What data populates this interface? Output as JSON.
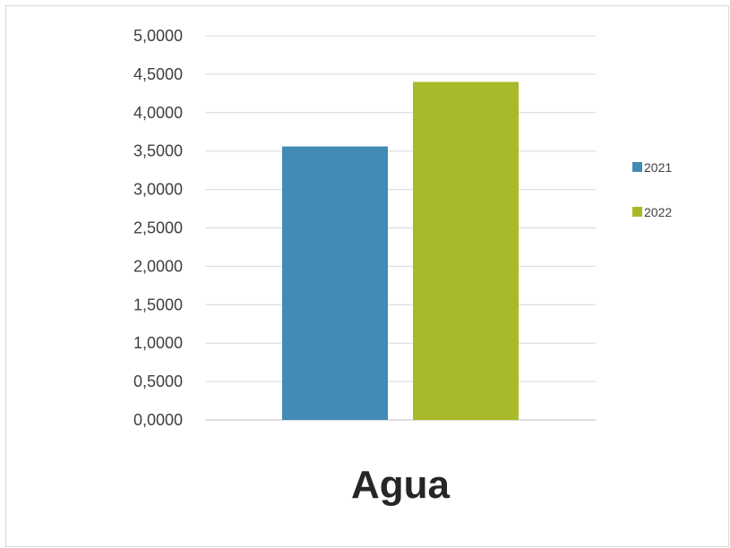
{
  "chart_data": {
    "type": "bar",
    "categories": [
      "Agua"
    ],
    "series": [
      {
        "name": "2021",
        "values": [
          3.56
        ],
        "color": "#428bb5"
      },
      {
        "name": "2022",
        "values": [
          4.4
        ],
        "color": "#a8b92a"
      }
    ],
    "ylim": [
      0,
      5
    ],
    "ytick_step": 0.5,
    "ytick_labels": [
      "0,0000",
      "0,5000",
      "1,0000",
      "1,5000",
      "2,0000",
      "2,5000",
      "3,0000",
      "3,5000",
      "4,0000",
      "4,5000",
      "5,0000"
    ],
    "grid": true,
    "legend_position": "right"
  }
}
